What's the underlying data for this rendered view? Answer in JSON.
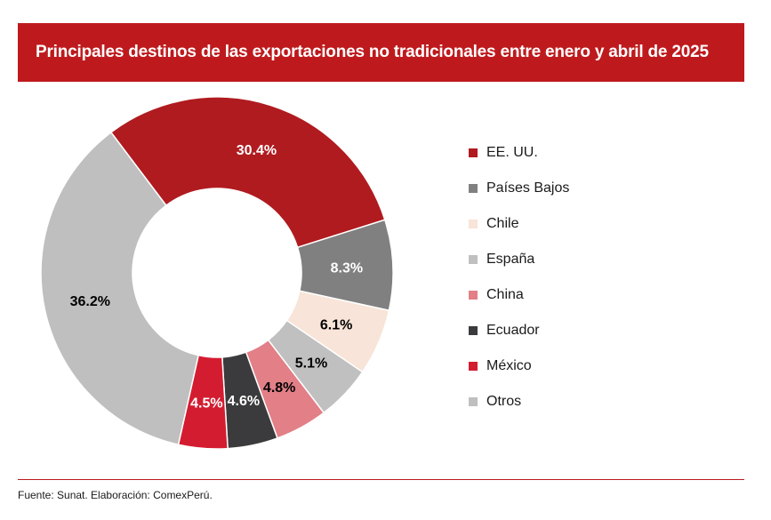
{
  "title": "Principales destinos de las exportaciones no tradicionales entre enero y abril de 2025",
  "source": "Fuente: Sunat. Elaboración: ComexPerú.",
  "colors": {
    "header": "#be1a1d"
  },
  "chart_data": {
    "type": "pie",
    "donut": true,
    "title": "Principales destinos de las exportaciones no tradicionales entre enero y abril de 2025",
    "legend_position": "right",
    "categories": [
      "EE. UU.",
      "Países Bajos",
      "Chile",
      "España",
      "China",
      "Ecuador",
      "México",
      "Otros"
    ],
    "values": [
      30.4,
      8.3,
      6.1,
      5.1,
      4.8,
      4.6,
      4.5,
      36.2
    ],
    "labels": [
      "30.4%",
      "8.3%",
      "6.1%",
      "5.1%",
      "4.8%",
      "4.6%",
      "4.5%",
      "36.2%"
    ],
    "colors": [
      "#b01b1f",
      "#808080",
      "#f8e4d8",
      "#c0c0c0",
      "#e27f87",
      "#3b3b3d",
      "#d41c30",
      "#bfbfbf"
    ],
    "label_colors": [
      "#ffffff",
      "#ffffff",
      "#000000",
      "#000000",
      "#000000",
      "#ffffff",
      "#ffffff",
      "#000000"
    ]
  }
}
